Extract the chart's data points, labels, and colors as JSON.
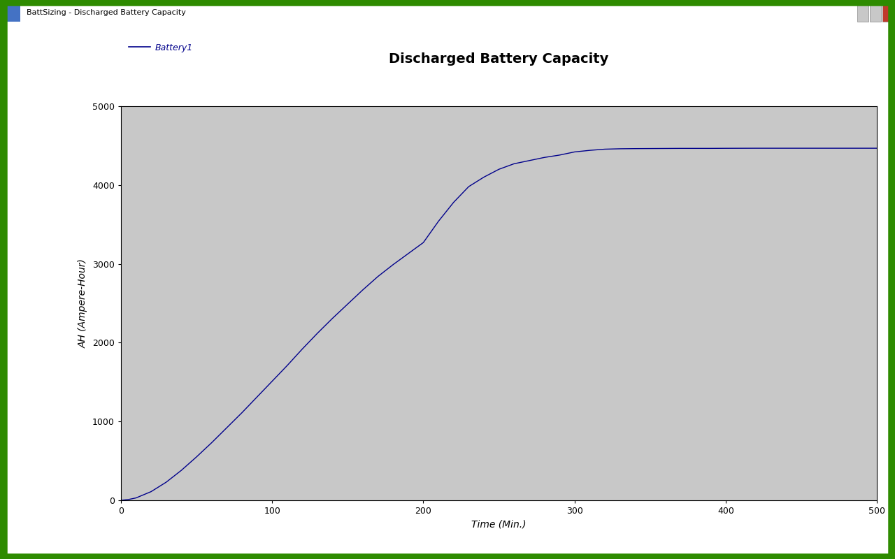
{
  "title": "Discharged Battery Capacity",
  "xlabel": "Time (Min.)",
  "ylabel": "AH (Ampere-Hour)",
  "legend_label": "Battery1",
  "line_color": "#00008B",
  "legend_line_color": "#00008B",
  "legend_text_color": "#00008B",
  "title_color": "#000000",
  "axis_bg_color": "#C8C8C8",
  "fig_bg_color": "#FFFFFF",
  "titlebar_bg_color": "#A8C0D8",
  "border_color": "#2E8B00",
  "border_width": 9,
  "xlim": [
    0,
    500
  ],
  "ylim": [
    0,
    5000
  ],
  "xticks": [
    0,
    100,
    200,
    300,
    400,
    500
  ],
  "yticks": [
    0,
    1000,
    2000,
    3000,
    4000,
    5000
  ],
  "title_fontsize": 14,
  "axis_label_fontsize": 10,
  "tick_fontsize": 9,
  "legend_fontsize": 9,
  "curve_x": [
    0,
    5,
    10,
    20,
    30,
    40,
    50,
    60,
    70,
    80,
    90,
    100,
    110,
    120,
    130,
    140,
    150,
    160,
    170,
    180,
    190,
    200,
    210,
    220,
    230,
    240,
    250,
    260,
    270,
    280,
    290,
    300,
    310,
    320,
    330,
    340,
    350,
    360,
    370,
    380,
    390,
    400,
    420,
    440,
    460,
    480,
    500
  ],
  "curve_y": [
    0,
    10,
    30,
    110,
    230,
    380,
    550,
    730,
    920,
    1110,
    1310,
    1510,
    1710,
    1920,
    2120,
    2310,
    2490,
    2670,
    2840,
    2990,
    3130,
    3270,
    3540,
    3780,
    3980,
    4100,
    4200,
    4270,
    4310,
    4350,
    4380,
    4420,
    4440,
    4455,
    4460,
    4462,
    4463,
    4464,
    4465,
    4465,
    4465,
    4466,
    4467,
    4467,
    4467,
    4467,
    4467
  ]
}
